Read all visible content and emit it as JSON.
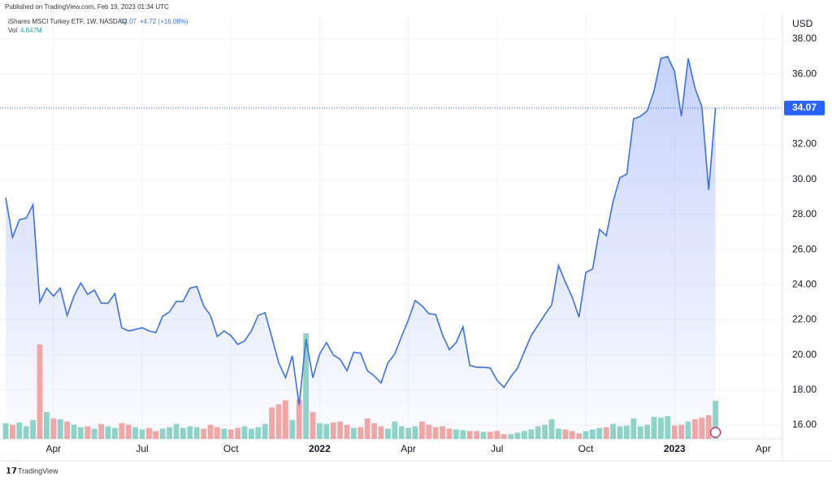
{
  "header": {
    "published": "Published on TradingView.com, Feb 19, 2023 01:34 UTC",
    "change": "+4.72 (+16.08%)",
    "volume_last": "4.847M",
    "footer": "TradingView"
  },
  "chart_data": {
    "type": "line",
    "currency": "USD",
    "up_color": "#8fd3c8",
    "down_color": "#f2a5a5",
    "area_color": "#5b7ff0",
    "categories": [
      null,
      null,
      null,
      null,
      null,
      null,
      null,
      "Apr",
      null,
      null,
      null,
      null,
      null,
      null,
      null,
      null,
      null,
      null,
      null,
      null,
      "Jul",
      null,
      null,
      null,
      null,
      null,
      null,
      null,
      null,
      null,
      null,
      null,
      null,
      "Oct",
      null,
      null,
      null,
      null,
      null,
      null,
      null,
      null,
      null,
      null,
      null,
      null,
      "2022",
      null,
      null,
      null,
      null,
      null,
      null,
      null,
      null,
      null,
      null,
      null,
      null,
      "Apr",
      null,
      null,
      null,
      null,
      null,
      null,
      null,
      null,
      null,
      null,
      null,
      null,
      "Jul",
      null,
      null,
      null,
      null,
      null,
      null,
      null,
      null,
      null,
      null,
      null,
      null,
      "Oct",
      null,
      null,
      null,
      null,
      null,
      null,
      null,
      null,
      null,
      null,
      null,
      null,
      "2023",
      null,
      null,
      null,
      null,
      null,
      null,
      null,
      null,
      null,
      null,
      null,
      null,
      "Apr",
      null,
      null
    ],
    "series": [
      {
        "name": "iShares MSCI Turkey ETF, 1W, NASDAQ",
        "color": "#3d72d9",
        "values": [
          28.97,
          26.7,
          27.7,
          27.8,
          28.55,
          23.0,
          23.8,
          23.35,
          23.8,
          22.25,
          23.35,
          24.1,
          23.45,
          23.7,
          22.95,
          22.95,
          23.5,
          21.55,
          21.37,
          21.45,
          21.55,
          21.37,
          21.27,
          22.2,
          22.45,
          23.05,
          23.05,
          23.8,
          23.9,
          22.8,
          22.25,
          21.05,
          21.37,
          21.1,
          20.6,
          20.8,
          21.37,
          22.25,
          22.4,
          21.0,
          19.55,
          18.7,
          19.95,
          17.15,
          20.9,
          18.7,
          20.05,
          20.7,
          20.0,
          19.75,
          19.1,
          20.15,
          20.1,
          19.1,
          18.8,
          18.4,
          19.55,
          20.05,
          21.05,
          22.0,
          23.1,
          22.8,
          22.35,
          22.3,
          21.15,
          20.3,
          20.7,
          21.6,
          19.4,
          19.3,
          19.3,
          19.25,
          18.55,
          18.15,
          18.75,
          19.25,
          20.2,
          21.1,
          21.7,
          22.3,
          22.85,
          25.1,
          24.15,
          23.3,
          22.15,
          24.7,
          24.9,
          27.15,
          26.8,
          28.75,
          30.1,
          30.3,
          33.45,
          33.6,
          33.9,
          35.05,
          36.9,
          37.0,
          36.15,
          33.6,
          36.9,
          35.2,
          34.15,
          29.4,
          34.07,
          null,
          null,
          null,
          null,
          null,
          null,
          null,
          null,
          null
        ]
      },
      {
        "name": "Vol",
        "values": [
          2.0,
          1.8,
          2.1,
          1.6,
          2.4,
          12.0,
          3.4,
          2.6,
          2.5,
          2.2,
          1.8,
          1.5,
          1.6,
          1.3,
          1.9,
          1.6,
          1.4,
          2.0,
          1.8,
          1.5,
          1.2,
          1.4,
          1.0,
          1.3,
          1.5,
          1.9,
          1.4,
          1.6,
          1.5,
          1.3,
          1.8,
          1.5,
          1.3,
          1.2,
          1.4,
          1.6,
          1.3,
          1.5,
          1.9,
          4.0,
          4.4,
          4.9,
          2.4,
          5.0,
          13.4,
          3.4,
          2.0,
          1.9,
          2.1,
          2.2,
          1.8,
          1.4,
          1.5,
          2.6,
          2.0,
          1.6,
          1.3,
          2.2,
          1.6,
          1.4,
          1.6,
          2.2,
          1.8,
          1.5,
          1.6,
          1.3,
          1.2,
          1.1,
          1.0,
          1.0,
          0.9,
          0.9,
          1.0,
          0.6,
          0.6,
          0.8,
          1.0,
          1.2,
          1.6,
          1.8,
          2.5,
          1.3,
          1.2,
          1.0,
          0.7,
          1.0,
          1.2,
          1.4,
          1.5,
          1.9,
          1.6,
          1.7,
          2.6,
          1.6,
          1.8,
          2.8,
          2.7,
          2.9,
          1.7,
          1.8,
          2.2,
          2.5,
          2.7,
          3.0,
          4.847,
          null,
          null,
          null,
          null,
          null,
          null,
          null,
          null,
          null
        ]
      }
    ],
    "ylim": [
      15.2,
      38.7
    ],
    "yticks": [
      {
        "value": 16,
        "label": "16.00"
      },
      {
        "value": 18,
        "label": "18.00"
      },
      {
        "value": 20,
        "label": "20.00"
      },
      {
        "value": 22,
        "label": "22.00"
      },
      {
        "value": 24,
        "label": "24.00"
      },
      {
        "value": 26,
        "label": "26.00"
      },
      {
        "value": 28,
        "label": "28.00"
      },
      {
        "value": 30,
        "label": "30.00"
      },
      {
        "value": 32,
        "label": "32.00"
      },
      {
        "value": 34,
        "label": "34.00"
      },
      {
        "value": 36,
        "label": "36.00"
      },
      {
        "value": 38,
        "label": "38.00"
      }
    ],
    "grid": true
  }
}
